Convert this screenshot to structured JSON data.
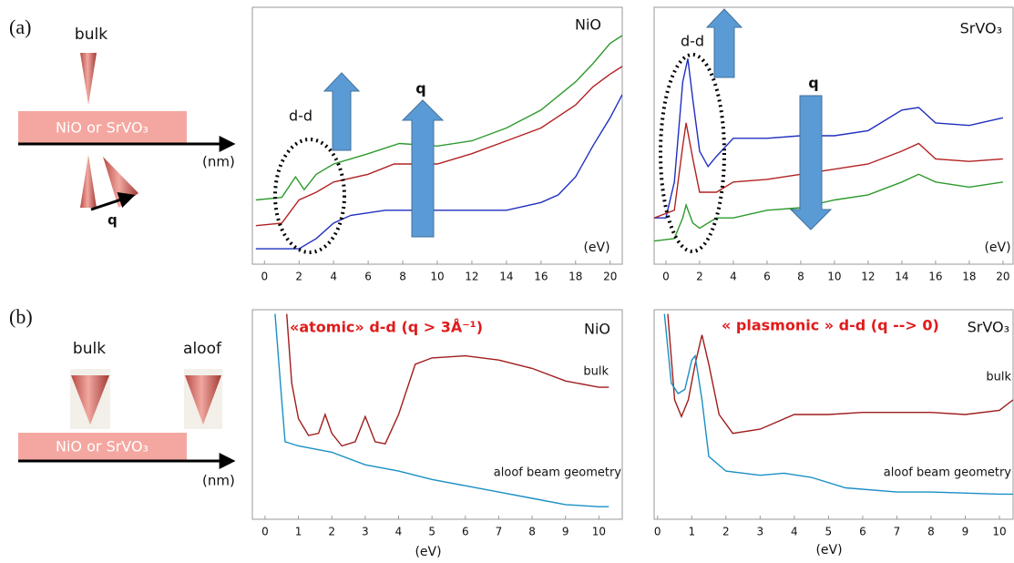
{
  "schematic": {
    "panel_a": {
      "label": "(a)",
      "bulk": "bulk",
      "slab": "NiO or SrVO₃",
      "axis": "(nm)",
      "q": "q"
    },
    "panel_b": {
      "label": "(b)",
      "bulk": "bulk",
      "aloof": "aloof",
      "slab": "NiO or SrVO₃",
      "axis": "(nm)"
    }
  },
  "chart_data": [
    {
      "type": "line",
      "title": "NiO",
      "x_label": "(eV)",
      "annotations": [
        "d-d",
        "q"
      ],
      "xlim": [
        -0.7,
        20.7
      ],
      "xticks": [
        0,
        2,
        4,
        6,
        8,
        10,
        12,
        14,
        16,
        18,
        20
      ],
      "ylim": [
        0,
        100
      ],
      "grid": false,
      "series": [
        {
          "name": null,
          "color": "#2e9a2e",
          "x": [
            -0.5,
            1,
            1.8,
            2.3,
            3,
            4,
            6,
            7.8,
            10,
            12,
            14,
            16,
            18,
            19,
            20,
            20.7
          ],
          "values": [
            25,
            26,
            34,
            29,
            35,
            39,
            43,
            47,
            46,
            48,
            53,
            60,
            71,
            78,
            86,
            89
          ]
        },
        {
          "name": null,
          "color": "#b22222",
          "x": [
            -0.5,
            1,
            2,
            3,
            4,
            6,
            7.5,
            10,
            12,
            14,
            16,
            18,
            19,
            20,
            20.7
          ],
          "values": [
            15,
            16,
            25,
            28,
            32,
            35,
            39,
            39,
            43,
            48,
            53,
            62,
            69,
            74,
            77
          ]
        },
        {
          "name": null,
          "color": "#1f2fbf",
          "x": [
            -0.5,
            2,
            3,
            4,
            5,
            7,
            10,
            14,
            16,
            17,
            18,
            19,
            20,
            20.7
          ],
          "values": [
            6,
            6,
            10,
            16,
            19,
            21,
            21,
            21,
            24,
            27,
            34,
            46,
            57,
            66
          ]
        }
      ]
    },
    {
      "type": "line",
      "title": "SrVO₃",
      "x_label": "(eV)",
      "annotations": [
        "d-d",
        "q"
      ],
      "xlim": [
        -0.7,
        20.6
      ],
      "xticks": [
        0,
        2,
        4,
        6,
        8,
        10,
        12,
        14,
        16,
        18,
        20
      ],
      "ylim": [
        0,
        100
      ],
      "grid": false,
      "series": [
        {
          "name": null,
          "color": "#1f2fbf",
          "x": [
            -0.7,
            0,
            0.5,
            1,
            1.3,
            1.6,
            2,
            2.5,
            3,
            4,
            6,
            8,
            10,
            12,
            14,
            15,
            16,
            18,
            20
          ],
          "values": [
            18,
            18,
            32,
            71,
            80,
            64,
            44,
            38,
            42,
            49,
            49,
            50,
            50,
            52,
            60,
            61,
            55,
            54,
            57
          ]
        },
        {
          "name": null,
          "color": "#b22222",
          "x": [
            -0.7,
            0.5,
            1,
            1.2,
            1.6,
            2,
            3,
            4,
            6,
            8,
            10,
            12,
            14,
            15,
            16,
            18,
            20
          ],
          "values": [
            18,
            21,
            46,
            55,
            41,
            28,
            28,
            32,
            33,
            35,
            37,
            39,
            44,
            47,
            41,
            40,
            41
          ]
        },
        {
          "name": null,
          "color": "#2e9a2e",
          "x": [
            -0.7,
            0.5,
            1,
            1.2,
            1.6,
            2,
            3,
            4,
            6,
            8,
            10,
            12,
            14,
            15,
            16,
            18,
            20
          ],
          "values": [
            9,
            10,
            18,
            23,
            16,
            14,
            18,
            18,
            21,
            22,
            25,
            27,
            32,
            35,
            32,
            30,
            32
          ]
        }
      ]
    },
    {
      "type": "line",
      "title": "NiO",
      "x_label": "(eV)",
      "annotations": [
        "«atomic» d-d (q > 3Å⁻¹)",
        "bulk",
        "aloof beam geometry"
      ],
      "xlim": [
        -0.38,
        10.7
      ],
      "xticks": [
        0,
        1,
        2,
        3,
        4,
        5,
        6,
        7,
        8,
        9,
        10
      ],
      "ylim": [
        0,
        100
      ],
      "grid": false,
      "series": [
        {
          "name": null,
          "color": "#a01c1c",
          "x": [
            0.65,
            0.8,
            1,
            1.3,
            1.6,
            1.8,
            2,
            2.3,
            2.7,
            3,
            3.3,
            3.6,
            4,
            4.5,
            5,
            6,
            7,
            8,
            9,
            10,
            10.3
          ],
          "values": [
            98,
            65,
            48,
            40,
            41,
            50,
            41,
            35,
            37,
            49,
            37,
            36,
            50,
            74,
            77,
            78,
            76,
            72,
            66,
            63,
            63
          ]
        },
        {
          "name": null,
          "color": "#1a8fc4",
          "x": [
            0.3,
            0.5,
            0.6,
            1,
            2,
            3,
            4,
            5,
            6,
            7,
            8,
            9,
            10,
            10.3
          ],
          "values": [
            98,
            57,
            37,
            35,
            32,
            26,
            23,
            19,
            16,
            13,
            10,
            7,
            6,
            6
          ]
        }
      ]
    },
    {
      "type": "line",
      "title": "SrVO₃",
      "x_label": "(eV)",
      "annotations": [
        "« plasmonic » d-d (q --> 0)",
        "bulk",
        "aloof beam geometry"
      ],
      "xlim": [
        -0.1,
        10.4
      ],
      "xticks": [
        0,
        1,
        2,
        3,
        4,
        5,
        6,
        7,
        8,
        9,
        10
      ],
      "ylim": [
        0,
        100
      ],
      "grid": false,
      "series": [
        {
          "name": null,
          "color": "#a01c1c",
          "x": [
            0.3,
            0.5,
            0.7,
            0.9,
            1.1,
            1.3,
            1.5,
            1.8,
            2.2,
            3,
            4,
            5,
            6,
            7,
            8,
            9,
            10,
            10.4
          ],
          "values": [
            98,
            57,
            49,
            57,
            74,
            88,
            74,
            50,
            41,
            43,
            50,
            50,
            51,
            51,
            51,
            50,
            52,
            57
          ]
        },
        {
          "name": null,
          "color": "#1a8fc4",
          "x": [
            0.2,
            0.4,
            0.6,
            0.8,
            1,
            1.1,
            1.3,
            1.5,
            2,
            3,
            3.7,
            4.5,
            5.5,
            7,
            8,
            10,
            10.4
          ],
          "values": [
            98,
            65,
            60,
            62,
            76,
            78,
            57,
            30,
            23,
            21,
            22,
            20,
            15,
            13,
            13,
            12,
            12
          ]
        }
      ]
    }
  ]
}
